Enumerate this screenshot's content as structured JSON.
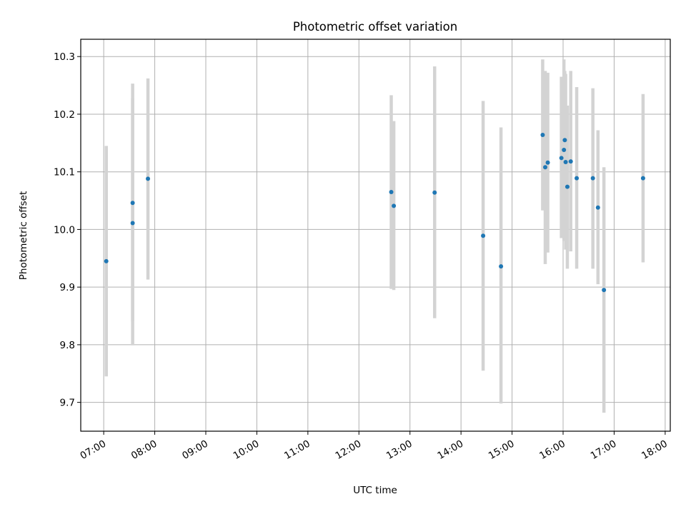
{
  "chart_data": {
    "type": "scatter",
    "title": "Photometric offset variation",
    "xlabel": "UTC time",
    "ylabel": "Photometric offset",
    "x_tick_labels": [
      "07:00",
      "08:00",
      "09:00",
      "10:00",
      "11:00",
      "12:00",
      "13:00",
      "14:00",
      "15:00",
      "16:00",
      "17:00",
      "18:00"
    ],
    "y_tick_labels": [
      "9.7",
      "9.8",
      "9.9",
      "10.0",
      "10.1",
      "10.2",
      "10.3"
    ],
    "x_ticks": [
      "07:00",
      "08:00",
      "09:00",
      "10:00",
      "11:00",
      "12:00",
      "13:00",
      "14:00",
      "15:00",
      "16:00",
      "17:00",
      "18:00"
    ],
    "y_ticks": [
      9.7,
      9.8,
      9.9,
      10.0,
      10.1,
      10.2,
      10.3
    ],
    "xlim": [
      "06:33",
      "18:06"
    ],
    "ylim": [
      9.65,
      10.33
    ],
    "grid": true,
    "point_color": "#1f77b4",
    "errorbar_color": "#d3d3d3",
    "points": [
      {
        "x": "07:03",
        "y": 9.945,
        "err_low": 9.745,
        "err_high": 10.145
      },
      {
        "x": "07:34",
        "y": 10.046,
        "err_low": 9.841,
        "err_high": 10.253
      },
      {
        "x": "07:34",
        "y": 10.011,
        "err_low": 9.799,
        "err_high": 10.228
      },
      {
        "x": "07:52",
        "y": 10.088,
        "err_low": 9.913,
        "err_high": 10.262
      },
      {
        "x": "12:38",
        "y": 10.065,
        "err_low": 9.897,
        "err_high": 10.233
      },
      {
        "x": "12:41",
        "y": 10.041,
        "err_low": 9.895,
        "err_high": 10.188
      },
      {
        "x": "13:29",
        "y": 10.064,
        "err_low": 9.846,
        "err_high": 10.283
      },
      {
        "x": "14:26",
        "y": 9.989,
        "err_low": 9.755,
        "err_high": 10.223
      },
      {
        "x": "14:47",
        "y": 9.936,
        "err_low": 9.698,
        "err_high": 10.177
      },
      {
        "x": "15:36",
        "y": 10.164,
        "err_low": 10.033,
        "err_high": 10.295
      },
      {
        "x": "15:39",
        "y": 10.108,
        "err_low": 9.94,
        "err_high": 10.275
      },
      {
        "x": "15:42",
        "y": 10.116,
        "err_low": 9.96,
        "err_high": 10.272
      },
      {
        "x": "15:58",
        "y": 10.124,
        "err_low": 9.985,
        "err_high": 10.265
      },
      {
        "x": "16:01",
        "y": 10.138,
        "err_low": 9.98,
        "err_high": 10.295
      },
      {
        "x": "16:02",
        "y": 10.155,
        "err_low": 10.035,
        "err_high": 10.275
      },
      {
        "x": "16:03",
        "y": 10.117,
        "err_low": 9.965,
        "err_high": 10.27
      },
      {
        "x": "16:05",
        "y": 10.074,
        "err_low": 9.932,
        "err_high": 10.215
      },
      {
        "x": "16:09",
        "y": 10.118,
        "err_low": 9.962,
        "err_high": 10.275
      },
      {
        "x": "16:16",
        "y": 10.089,
        "err_low": 9.932,
        "err_high": 10.247
      },
      {
        "x": "16:35",
        "y": 10.089,
        "err_low": 9.932,
        "err_high": 10.245
      },
      {
        "x": "16:41",
        "y": 10.038,
        "err_low": 9.905,
        "err_high": 10.172
      },
      {
        "x": "16:48",
        "y": 9.895,
        "err_low": 9.682,
        "err_high": 10.108
      },
      {
        "x": "17:34",
        "y": 10.089,
        "err_low": 9.943,
        "err_high": 10.235
      }
    ]
  }
}
